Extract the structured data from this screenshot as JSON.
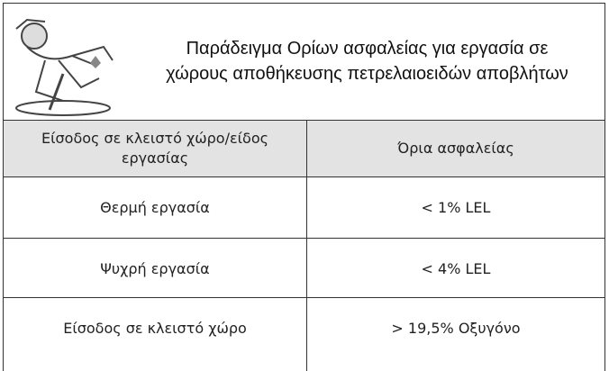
{
  "header": {
    "title_lines": [
      "Παράδειγμα Ορίων ασφαλείας για εργασία σε",
      "χώρους αποθήκευσης πετρελαιοειδών αποβλήτων"
    ]
  },
  "table": {
    "columns": [
      "Είσοδος σε κλειστό χώρο/είδος εργασίας",
      "Όρια ασφαλείας"
    ],
    "rows": [
      [
        "Θερμή εργασία",
        "< 1% LEL"
      ],
      [
        "Ψυχρή εργασία",
        "< 4% LEL"
      ],
      [
        "Είσοδος σε κλειστό χώρο",
        "> 19,5% Οξυγόνο"
      ]
    ]
  }
}
